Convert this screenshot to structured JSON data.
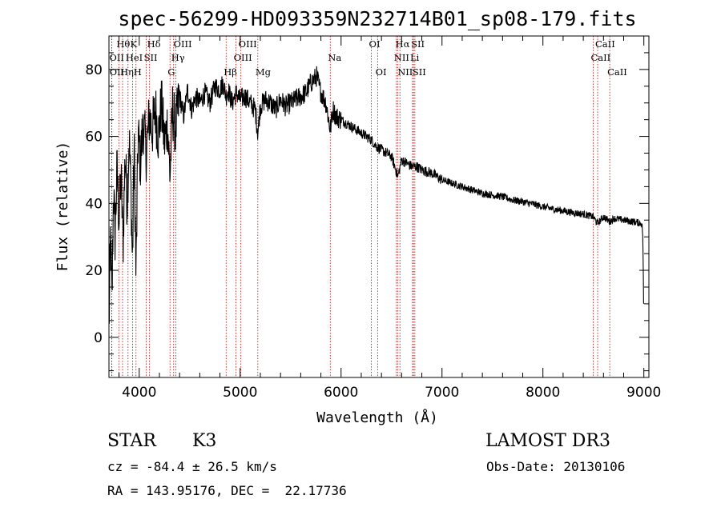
{
  "chart_data": {
    "type": "line",
    "title": "spec-56299-HD093359N232714B01_sp08-179.fits",
    "xlabel": "Wavelength (Å)",
    "ylabel": "Flux (relative)",
    "xlim": [
      3700,
      9050
    ],
    "ylim": [
      -12,
      90
    ],
    "xticks": [
      4000,
      5000,
      6000,
      7000,
      8000,
      9000
    ],
    "yticks": [
      0,
      20,
      40,
      60,
      80
    ],
    "spectrum": {
      "x": [
        3700,
        3715,
        3730,
        3745,
        3760,
        3780,
        3800,
        3820,
        3840,
        3860,
        3880,
        3900,
        3920,
        3933,
        3950,
        3968,
        3990,
        4010,
        4040,
        4070,
        4100,
        4130,
        4160,
        4190,
        4220,
        4250,
        4280,
        4305,
        4330,
        4360,
        4400,
        4440,
        4480,
        4520,
        4560,
        4600,
        4650,
        4700,
        4750,
        4800,
        4830,
        4861,
        4880,
        4920,
        4960,
        5000,
        5050,
        5100,
        5150,
        5175,
        5200,
        5250,
        5300,
        5350,
        5400,
        5450,
        5500,
        5550,
        5600,
        5650,
        5700,
        5730,
        5760,
        5790,
        5820,
        5850,
        5893,
        5920,
        5950,
        6000,
        6050,
        6100,
        6150,
        6200,
        6250,
        6300,
        6350,
        6400,
        6450,
        6500,
        6563,
        6600,
        6650,
        6700,
        6750,
        6800,
        6900,
        7000,
        7100,
        7200,
        7300,
        7400,
        7500,
        7600,
        7700,
        7800,
        7900,
        8000,
        8100,
        8200,
        8300,
        8400,
        8498,
        8542,
        8600,
        8662,
        8700,
        8800,
        8900,
        8980,
        8990,
        9000
      ],
      "y": [
        2,
        30,
        10,
        45,
        30,
        50,
        35,
        48,
        28,
        55,
        40,
        60,
        42,
        22,
        58,
        18,
        62,
        52,
        64,
        55,
        66,
        62,
        68,
        60,
        70,
        58,
        64,
        48,
        68,
        62,
        72,
        66,
        74,
        68,
        72,
        70,
        73,
        70,
        75,
        74,
        76,
        72,
        74,
        70,
        73,
        71,
        72,
        70,
        68,
        61,
        69,
        71,
        70,
        68,
        71,
        69,
        70,
        71,
        72,
        73,
        76,
        77,
        78,
        74,
        72,
        70,
        62,
        68,
        66,
        65,
        64,
        63,
        62,
        61,
        60,
        59,
        57,
        56,
        55,
        54,
        48,
        53,
        52,
        51,
        51,
        50,
        49,
        47,
        46,
        45,
        44,
        43,
        42.5,
        42,
        41,
        40.5,
        39.8,
        39,
        38.3,
        37.8,
        37.2,
        36.8,
        36,
        34,
        36,
        34.5,
        35.5,
        35,
        34.5,
        34,
        30,
        5
      ]
    },
    "spectral_lines": [
      {
        "label": "Hθ",
        "wavelength": 3798,
        "row": 1
      },
      {
        "label": "OII",
        "wavelength": 3727,
        "row": 2
      },
      {
        "label": "OII",
        "wavelength": 3729,
        "row": 3
      },
      {
        "label": "K",
        "wavelength": 3934,
        "row": 1
      },
      {
        "label": "HeI",
        "wavelength": 3889,
        "row": 2
      },
      {
        "label": "Hη",
        "wavelength": 3835,
        "row": 3
      },
      {
        "label": "Hδ",
        "wavelength": 4102,
        "row": 1
      },
      {
        "label": "SII",
        "wavelength": 4070,
        "row": 2
      },
      {
        "label": "H",
        "wavelength": 3968,
        "row": 3
      },
      {
        "label": "OIII",
        "wavelength": 4363,
        "row": 1
      },
      {
        "label": "Hγ",
        "wavelength": 4341,
        "row": 2
      },
      {
        "label": "G",
        "wavelength": 4305,
        "row": 3
      },
      {
        "label": "OIII",
        "wavelength": 5007,
        "row": 1
      },
      {
        "label": "OIII",
        "wavelength": 4959,
        "row": 2
      },
      {
        "label": "Hβ",
        "wavelength": 4861,
        "row": 3
      },
      {
        "label": "Mg",
        "wavelength": 5175,
        "row": 3
      },
      {
        "label": "Na",
        "wavelength": 5893,
        "row": 2
      },
      {
        "label": "OI",
        "wavelength": 6300,
        "row": 1
      },
      {
        "label": "OI",
        "wavelength": 6364,
        "row": 3
      },
      {
        "label": "Hα",
        "wavelength": 6563,
        "row": 1
      },
      {
        "label": "NII",
        "wavelength": 6548,
        "row": 2
      },
      {
        "label": "NII",
        "wavelength": 6583,
        "row": 3
      },
      {
        "label": "SII",
        "wavelength": 6717,
        "row": 1
      },
      {
        "label": "Li",
        "wavelength": 6708,
        "row": 2
      },
      {
        "label": "SII",
        "wavelength": 6731,
        "row": 3
      },
      {
        "label": "CaII",
        "wavelength": 8542,
        "row": 1
      },
      {
        "label": "CaII",
        "wavelength": 8498,
        "row": 2
      },
      {
        "label": "CaII",
        "wavelength": 8662,
        "row": 3
      }
    ]
  },
  "info": {
    "class": "STAR",
    "subclass": "K3",
    "survey": "LAMOST DR3",
    "cz": "cz = -84.4 ± 26.5 km/s",
    "obs_date": "Obs-Date: 20130106",
    "coords": "RA = 143.95176, DEC =  22.17736"
  },
  "colors": {
    "line_marker": "#c00000",
    "spectrum": "#000000"
  }
}
